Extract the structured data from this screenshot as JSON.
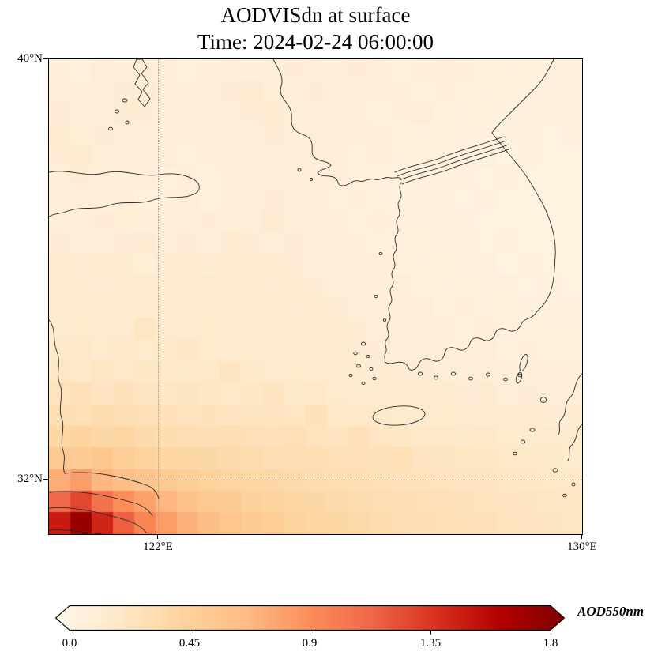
{
  "title": "AODVISdn at surface",
  "subtitle": "Time: 2024-02-24 06:00:00",
  "axes": {
    "y_ticks": [
      "40°N",
      "32°N"
    ],
    "x_ticks": [
      "122°E",
      "130°E"
    ]
  },
  "colorbar": {
    "label": "AOD550nm",
    "ticks": [
      "0.0",
      "0.45",
      "0.9",
      "1.35",
      "1.8"
    ]
  },
  "chart_data": {
    "type": "heatmap",
    "title": "AODVISdn at surface",
    "time": "2024-02-24 06:00:00",
    "variable": "AODVISdn",
    "colorbar_label": "AOD550nm",
    "colormap": "OrRd",
    "colormap_stops": [
      "#fff7ec",
      "#fee8c8",
      "#fdd49e",
      "#fdbb84",
      "#fc8d59",
      "#ef6548",
      "#d7301f",
      "#b30000",
      "#7f0000"
    ],
    "vmin": 0.0,
    "vmax": 1.8,
    "colorbar_ticks": [
      0.0,
      0.45,
      0.9,
      1.35,
      1.8
    ],
    "lon_range": [
      120,
      130
    ],
    "lat_range": [
      31,
      40
    ],
    "x_tick_values": [
      122,
      130
    ],
    "y_tick_values": [
      40,
      32
    ],
    "grid_lines": {
      "lon": [
        122
      ],
      "lat": [
        32
      ],
      "style": "dotted"
    },
    "values_orientation": "rows north (40N) to south (31N), columns west (120E) to east (130E)",
    "values": [
      [
        0.12,
        0.1,
        0.14,
        0.12,
        0.15,
        0.13,
        0.11,
        0.12,
        0.14,
        0.12,
        0.13,
        0.15,
        0.14,
        0.12,
        0.15,
        0.13,
        0.11,
        0.12,
        0.13,
        0.12,
        0.11,
        0.1,
        0.11,
        0.1,
        0.1
      ],
      [
        0.14,
        0.12,
        0.13,
        0.15,
        0.16,
        0.14,
        0.12,
        0.13,
        0.15,
        0.16,
        0.14,
        0.13,
        0.15,
        0.13,
        0.12,
        0.14,
        0.12,
        0.11,
        0.12,
        0.11,
        0.1,
        0.11,
        0.1,
        0.09,
        0.1
      ],
      [
        0.15,
        0.13,
        0.14,
        0.16,
        0.15,
        0.13,
        0.14,
        0.12,
        0.14,
        0.15,
        0.16,
        0.14,
        0.13,
        0.14,
        0.12,
        0.11,
        0.12,
        0.13,
        0.11,
        0.1,
        0.11,
        0.09,
        0.1,
        0.09,
        0.09
      ],
      [
        0.16,
        0.14,
        0.15,
        0.13,
        0.14,
        0.12,
        0.13,
        0.14,
        0.12,
        0.13,
        0.15,
        0.13,
        0.14,
        0.12,
        0.13,
        0.12,
        0.11,
        0.1,
        0.11,
        0.1,
        0.09,
        0.1,
        0.09,
        0.08,
        0.09
      ],
      [
        0.15,
        0.16,
        0.14,
        0.13,
        0.12,
        0.13,
        0.11,
        0.12,
        0.13,
        0.12,
        0.14,
        0.13,
        0.12,
        0.13,
        0.11,
        0.12,
        0.1,
        0.11,
        0.1,
        0.09,
        0.1,
        0.08,
        0.09,
        0.08,
        0.08
      ],
      [
        0.14,
        0.15,
        0.13,
        0.12,
        0.13,
        0.11,
        0.12,
        0.1,
        0.12,
        0.13,
        0.12,
        0.14,
        0.13,
        0.12,
        0.11,
        0.1,
        0.11,
        0.09,
        0.1,
        0.09,
        0.08,
        0.09,
        0.08,
        0.07,
        0.08
      ],
      [
        0.13,
        0.14,
        0.12,
        0.13,
        0.11,
        0.12,
        0.13,
        0.11,
        0.13,
        0.14,
        0.15,
        0.13,
        0.12,
        0.11,
        0.12,
        0.1,
        0.09,
        0.1,
        0.09,
        0.08,
        0.09,
        0.08,
        0.07,
        0.08,
        0.07
      ],
      [
        0.14,
        0.13,
        0.15,
        0.14,
        0.12,
        0.13,
        0.14,
        0.15,
        0.13,
        0.14,
        0.16,
        0.14,
        0.13,
        0.12,
        0.11,
        0.12,
        0.1,
        0.09,
        0.1,
        0.09,
        0.08,
        0.07,
        0.08,
        0.07,
        0.07
      ],
      [
        0.15,
        0.14,
        0.13,
        0.15,
        0.16,
        0.14,
        0.15,
        0.13,
        0.16,
        0.15,
        0.14,
        0.15,
        0.13,
        0.14,
        0.12,
        0.11,
        0.1,
        0.11,
        0.09,
        0.1,
        0.08,
        0.09,
        0.07,
        0.08,
        0.07
      ],
      [
        0.16,
        0.15,
        0.17,
        0.16,
        0.14,
        0.16,
        0.17,
        0.15,
        0.16,
        0.18,
        0.16,
        0.15,
        0.14,
        0.13,
        0.14,
        0.12,
        0.11,
        0.1,
        0.11,
        0.09,
        0.1,
        0.08,
        0.09,
        0.08,
        0.08
      ],
      [
        0.17,
        0.16,
        0.15,
        0.17,
        0.18,
        0.16,
        0.17,
        0.18,
        0.16,
        0.17,
        0.15,
        0.16,
        0.15,
        0.14,
        0.13,
        0.12,
        0.13,
        0.11,
        0.1,
        0.11,
        0.09,
        0.1,
        0.08,
        0.09,
        0.08
      ],
      [
        0.18,
        0.17,
        0.19,
        0.18,
        0.16,
        0.18,
        0.19,
        0.17,
        0.18,
        0.16,
        0.17,
        0.15,
        0.16,
        0.15,
        0.14,
        0.13,
        0.12,
        0.13,
        0.11,
        0.12,
        0.1,
        0.11,
        0.09,
        0.1,
        0.09
      ],
      [
        0.19,
        0.2,
        0.18,
        0.19,
        0.25,
        0.19,
        0.18,
        0.2,
        0.18,
        0.17,
        0.18,
        0.16,
        0.17,
        0.16,
        0.15,
        0.14,
        0.13,
        0.12,
        0.13,
        0.11,
        0.12,
        0.1,
        0.11,
        0.1,
        0.1
      ],
      [
        0.21,
        0.22,
        0.2,
        0.22,
        0.2,
        0.21,
        0.24,
        0.2,
        0.19,
        0.18,
        0.17,
        0.18,
        0.16,
        0.17,
        0.16,
        0.15,
        0.14,
        0.13,
        0.14,
        0.12,
        0.13,
        0.11,
        0.12,
        0.11,
        0.11
      ],
      [
        0.24,
        0.22,
        0.25,
        0.23,
        0.24,
        0.22,
        0.21,
        0.22,
        0.26,
        0.21,
        0.19,
        0.2,
        0.18,
        0.19,
        0.17,
        0.16,
        0.15,
        0.16,
        0.14,
        0.13,
        0.14,
        0.12,
        0.13,
        0.12,
        0.12
      ],
      [
        0.28,
        0.3,
        0.27,
        0.29,
        0.26,
        0.25,
        0.26,
        0.24,
        0.23,
        0.24,
        0.27,
        0.21,
        0.22,
        0.2,
        0.19,
        0.18,
        0.17,
        0.18,
        0.16,
        0.15,
        0.16,
        0.14,
        0.15,
        0.13,
        0.14
      ],
      [
        0.34,
        0.32,
        0.36,
        0.33,
        0.31,
        0.3,
        0.28,
        0.29,
        0.27,
        0.26,
        0.27,
        0.25,
        0.29,
        0.23,
        0.22,
        0.21,
        0.2,
        0.19,
        0.2,
        0.18,
        0.17,
        0.18,
        0.16,
        0.15,
        0.16
      ],
      [
        0.42,
        0.45,
        0.4,
        0.43,
        0.38,
        0.36,
        0.35,
        0.33,
        0.34,
        0.31,
        0.3,
        0.31,
        0.28,
        0.27,
        0.3,
        0.25,
        0.24,
        0.23,
        0.22,
        0.21,
        0.22,
        0.2,
        0.19,
        0.18,
        0.18
      ],
      [
        0.55,
        0.52,
        0.58,
        0.5,
        0.47,
        0.44,
        0.42,
        0.4,
        0.38,
        0.37,
        0.35,
        0.34,
        0.33,
        0.31,
        0.3,
        0.29,
        0.32,
        0.27,
        0.26,
        0.25,
        0.24,
        0.23,
        0.22,
        0.21,
        0.2
      ],
      [
        0.75,
        0.82,
        0.7,
        0.65,
        0.6,
        0.55,
        0.5,
        0.47,
        0.44,
        0.42,
        0.4,
        0.38,
        0.36,
        0.35,
        0.33,
        0.32,
        0.3,
        0.29,
        0.28,
        0.27,
        0.26,
        0.25,
        0.24,
        0.23,
        0.22
      ],
      [
        1.1,
        1.25,
        1.05,
        0.9,
        0.8,
        0.7,
        0.62,
        0.56,
        0.52,
        0.48,
        0.45,
        0.42,
        0.4,
        0.38,
        0.36,
        0.34,
        0.33,
        0.31,
        0.3,
        0.29,
        0.28,
        0.27,
        0.26,
        0.25,
        0.24
      ],
      [
        1.45,
        1.68,
        1.4,
        1.15,
        0.95,
        0.82,
        0.72,
        0.64,
        0.58,
        0.53,
        0.5,
        0.46,
        0.43,
        0.41,
        0.39,
        0.37,
        0.35,
        0.33,
        0.32,
        0.31,
        0.3,
        0.28,
        0.27,
        0.26,
        0.25
      ]
    ]
  }
}
